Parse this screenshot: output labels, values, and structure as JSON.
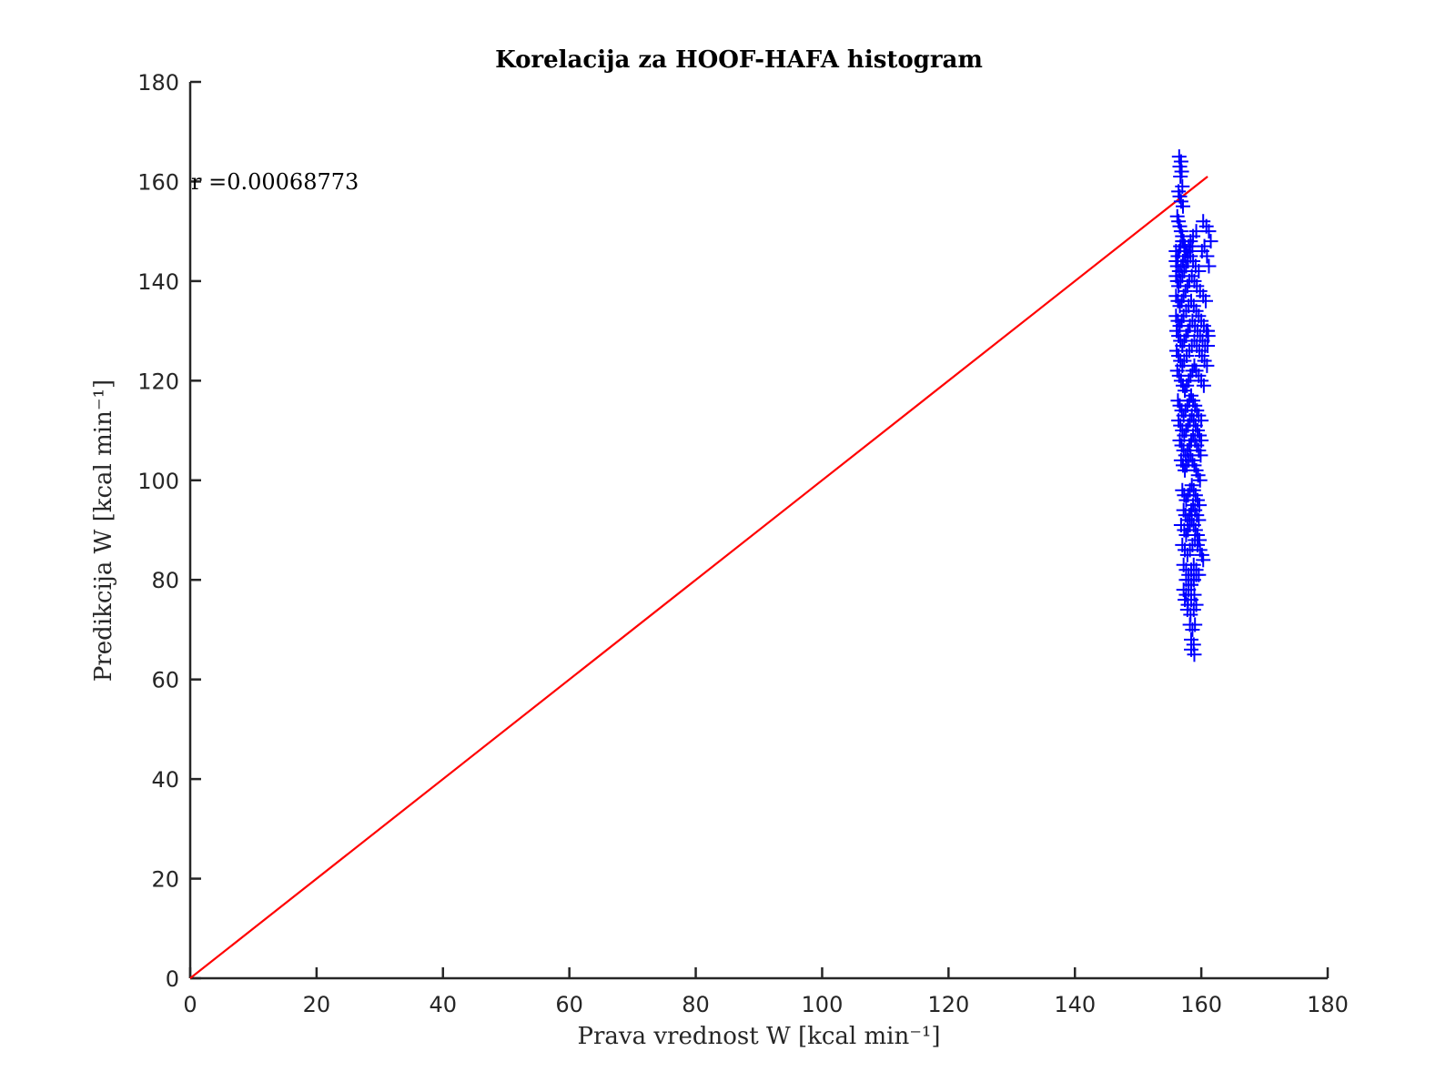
{
  "chart_data": {
    "type": "scatter",
    "title": "Korelacija za HOOF-HAFA histogram",
    "xlabel": "Prava vrednost W [kcal min⁻¹]",
    "ylabel": "Predikcija W [kcal min⁻¹]",
    "xlim": [
      0,
      180
    ],
    "ylim": [
      0,
      180
    ],
    "xticks": [
      0,
      20,
      40,
      60,
      80,
      100,
      120,
      140,
      160,
      180
    ],
    "yticks": [
      0,
      20,
      40,
      60,
      80,
      100,
      120,
      140,
      160,
      180
    ],
    "grid": false,
    "annotation": "r =0.00068773",
    "marker_color": "#0000ff",
    "fit_color": "#ff0000",
    "fit_line": {
      "x": [
        0,
        161
      ],
      "y": [
        0,
        161
      ]
    },
    "series": [
      {
        "marker": "+",
        "x": [
          156.5,
          156.6,
          156.7,
          156.8,
          156.9,
          157.0,
          156.4,
          156.6,
          156.8,
          157.1,
          156.2,
          156.4,
          156.6,
          156.8,
          157.0,
          157.2,
          157.4,
          156.0,
          156.3,
          156.5,
          156.7,
          157.0,
          157.3,
          157.6,
          157.9,
          158.2,
          158.6,
          156.0,
          156.2,
          156.5,
          156.8,
          157.1,
          157.4,
          157.7,
          158.0,
          158.3,
          158.7,
          159.2,
          160.3,
          160.8,
          161.2,
          161.5,
          156.0,
          156.2,
          156.4,
          156.7,
          157.0,
          157.3,
          157.6,
          157.9,
          158.3,
          158.7,
          159.1,
          159.6,
          160.1,
          160.5,
          160.9,
          161.2,
          156.0,
          156.3,
          156.6,
          156.9,
          157.2,
          157.5,
          157.8,
          158.1,
          158.5,
          158.9,
          159.3,
          159.8,
          160.3,
          160.7,
          161.0,
          156.0,
          156.3,
          156.6,
          156.9,
          157.2,
          157.6,
          158.0,
          158.4,
          158.8,
          159.2,
          159.6,
          160.0,
          160.4,
          160.8,
          161.1,
          156.1,
          156.4,
          156.7,
          157.0,
          157.3,
          157.6,
          157.9,
          158.2,
          158.6,
          159.0,
          159.4,
          159.8,
          160.2,
          160.6,
          161.0,
          156.1,
          156.4,
          156.7,
          157.0,
          157.3,
          157.7,
          158.1,
          158.5,
          158.9,
          159.3,
          159.7,
          160.1,
          160.5,
          160.9,
          156.2,
          156.5,
          156.8,
          157.1,
          157.4,
          157.7,
          158.0,
          158.3,
          158.6,
          158.9,
          159.2,
          159.6,
          160.0,
          160.4,
          156.3,
          156.6,
          156.9,
          157.2,
          157.5,
          157.8,
          158.1,
          158.4,
          158.7,
          159.0,
          159.3,
          159.6,
          160.0,
          156.4,
          156.7,
          157.0,
          157.3,
          157.6,
          157.9,
          158.2,
          158.5,
          158.8,
          159.1,
          159.4,
          159.7,
          160.0,
          156.6,
          156.9,
          157.2,
          157.5,
          157.8,
          158.1,
          158.4,
          158.7,
          159.0,
          159.3,
          159.6,
          159.9,
          156.8,
          157.1,
          157.4,
          157.7,
          158.0,
          158.3,
          158.6,
          158.9,
          159.2,
          159.5,
          159.8,
          157.0,
          157.3,
          157.6,
          157.9,
          158.2,
          158.5,
          158.8,
          159.1,
          159.4,
          159.7,
          157.2,
          157.5,
          157.8,
          158.1,
          158.4,
          158.7,
          159.0,
          159.3,
          159.6,
          156.8,
          157.3,
          157.6,
          157.9,
          158.2,
          158.5,
          158.8,
          159.1,
          159.4,
          159.7,
          157.0,
          157.4,
          157.8,
          158.2,
          158.6,
          159.0,
          159.4,
          159.8,
          160.1,
          160.3,
          157.2,
          157.6,
          158.0,
          158.4,
          158.8,
          159.2,
          159.6,
          157.6,
          158.0,
          158.4,
          158.8,
          159.2,
          157.2,
          157.6,
          158.0,
          158.4,
          158.8,
          157.4,
          157.9,
          158.4,
          158.9,
          157.8,
          158.3,
          158.8,
          159.2,
          158.2,
          158.6,
          159.0,
          158.4,
          158.8,
          158.4,
          158.9
        ],
        "y": [
          165,
          163,
          161,
          164,
          162,
          159,
          158,
          157,
          156,
          155,
          153,
          152,
          151,
          150,
          149,
          148,
          147,
          146,
          145,
          146,
          147,
          148,
          147,
          146,
          145,
          146,
          147,
          144,
          143,
          142,
          143,
          144,
          145,
          146,
          147,
          148,
          149,
          150,
          152,
          151,
          150,
          148,
          141,
          140,
          139,
          140,
          141,
          142,
          143,
          144,
          145,
          144,
          143,
          142,
          146,
          147,
          145,
          143,
          137,
          136,
          135,
          136,
          137,
          138,
          139,
          140,
          141,
          140,
          139,
          138,
          137,
          136,
          130,
          133,
          132,
          131,
          132,
          133,
          134,
          135,
          136,
          135,
          134,
          133,
          132,
          131,
          130,
          129,
          130,
          129,
          128,
          127,
          128,
          129,
          130,
          131,
          132,
          131,
          130,
          129,
          128,
          127,
          127,
          126,
          125,
          124,
          123,
          124,
          125,
          126,
          127,
          128,
          127,
          126,
          125,
          124,
          123,
          122,
          121,
          120,
          119,
          118,
          119,
          120,
          121,
          122,
          123,
          122,
          121,
          120,
          119,
          116,
          115,
          114,
          113,
          114,
          115,
          116,
          117,
          116,
          115,
          114,
          113,
          112,
          112,
          111,
          110,
          109,
          110,
          111,
          112,
          113,
          112,
          111,
          110,
          109,
          108,
          108,
          107,
          106,
          105,
          106,
          107,
          108,
          109,
          108,
          107,
          106,
          105,
          104,
          103,
          102,
          103,
          104,
          105,
          104,
          103,
          102,
          101,
          100,
          98,
          97,
          96,
          97,
          98,
          99,
          98,
          97,
          96,
          95,
          94,
          93,
          92,
          93,
          94,
          95,
          94,
          93,
          92,
          91,
          90,
          89,
          90,
          91,
          92,
          91,
          90,
          89,
          88,
          87,
          86,
          85,
          86,
          87,
          88,
          87,
          86,
          85,
          84,
          83,
          82,
          81,
          82,
          83,
          82,
          81,
          80,
          80,
          79,
          80,
          81,
          78,
          77,
          78,
          79,
          80,
          76,
          75,
          76,
          77,
          74,
          73,
          74,
          75,
          71,
          70,
          71,
          68,
          67,
          66,
          65
        ]
      }
    ]
  }
}
